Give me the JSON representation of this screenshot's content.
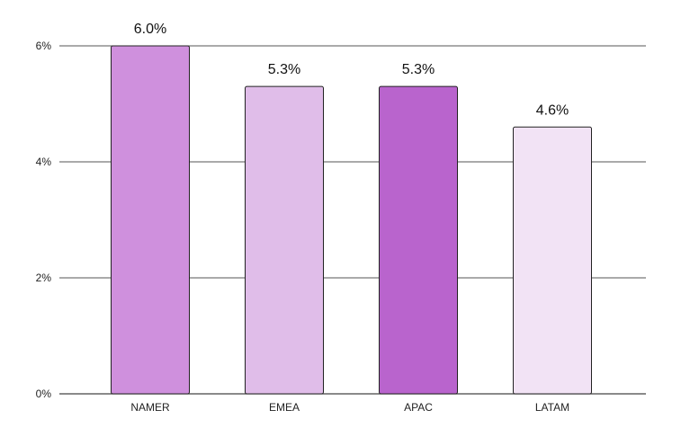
{
  "chart_data": {
    "type": "bar",
    "title": "",
    "xlabel": "",
    "ylabel": "",
    "categories": [
      "NAMER",
      "EMEA",
      "APAC",
      "LATAM"
    ],
    "values": [
      6.0,
      5.3,
      5.3,
      4.6
    ],
    "value_labels": [
      "6.0%",
      "5.3%",
      "5.3%",
      "4.6%"
    ],
    "bar_colors": [
      "#cf90dd",
      "#e0bde9",
      "#b964cd",
      "#f2e3f5"
    ],
    "ylim": [
      0,
      6
    ],
    "yticks": [
      0,
      2,
      4,
      6
    ],
    "ytick_labels": [
      "0%",
      "2%",
      "4%",
      "6%"
    ],
    "grid": true,
    "legend": "none"
  }
}
